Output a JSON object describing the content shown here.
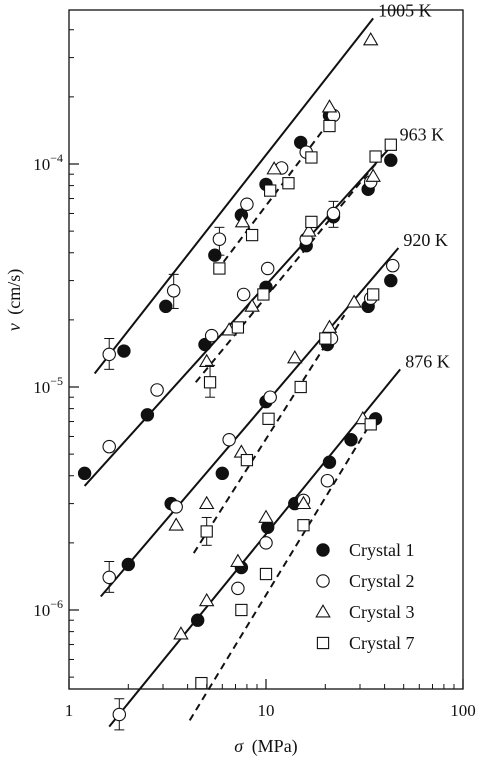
{
  "chart_data": {
    "type": "scatter",
    "xlabel_symbol": "σ",
    "xlabel_unit": "(MPa)",
    "ylabel_symbol": "v",
    "ylabel_unit": "(cm/s)",
    "x_scale": "log",
    "y_scale": "log",
    "xlim": [
      1,
      100
    ],
    "ylim": [
      2e-07,
      0.0007
    ],
    "x_ticks": [
      {
        "value": 1,
        "label": "1"
      },
      {
        "value": 10,
        "label": "10"
      },
      {
        "value": 100,
        "label": "100"
      }
    ],
    "y_ticks": [
      {
        "value": 1e-06,
        "mantissa": "10",
        "exponent": "−6"
      },
      {
        "value": 1e-05,
        "mantissa": "10",
        "exponent": "−5"
      },
      {
        "value": 0.0001,
        "mantissa": "10",
        "exponent": "−4"
      }
    ],
    "grid": false,
    "legend_position": "bottom-right",
    "legend": [
      {
        "name": "Crystal 1",
        "marker": "filled-circle"
      },
      {
        "name": "Crystal 2",
        "marker": "open-circle"
      },
      {
        "name": "Crystal 3",
        "marker": "open-triangle"
      },
      {
        "name": "Crystal 7",
        "marker": "open-square"
      }
    ],
    "temperature_groups": [
      {
        "label": "1005 K",
        "solid_line": [
          [
            1.35,
            1.15e-05
          ],
          [
            35,
            0.00045
          ]
        ],
        "dashed_line": [
          [
            5.6,
            3.3e-05
          ],
          [
            21,
            0.000155
          ]
        ],
        "points": [
          {
            "marker": "filled-circle",
            "x": 1.9,
            "y": 1.45e-05
          },
          {
            "marker": "filled-circle",
            "x": 3.1,
            "y": 2.3e-05
          },
          {
            "marker": "filled-circle",
            "x": 5.5,
            "y": 3.9e-05
          },
          {
            "marker": "filled-circle",
            "x": 7.5,
            "y": 5.9e-05
          },
          {
            "marker": "filled-circle",
            "x": 10,
            "y": 8.1e-05
          },
          {
            "marker": "filled-circle",
            "x": 15,
            "y": 0.000125
          },
          {
            "marker": "filled-circle",
            "x": 21,
            "y": 0.000165
          },
          {
            "marker": "open-circle",
            "x": 1.6,
            "y": 1.4e-05,
            "err": [
              1.2e-05,
              1.65e-05
            ]
          },
          {
            "marker": "open-circle",
            "x": 3.4,
            "y": 2.7e-05,
            "err": [
              2.25e-05,
              3.2e-05
            ]
          },
          {
            "marker": "open-circle",
            "x": 5.8,
            "y": 4.6e-05,
            "err": [
              3.9e-05,
              5.2e-05
            ]
          },
          {
            "marker": "open-circle",
            "x": 8,
            "y": 6.6e-05
          },
          {
            "marker": "open-circle",
            "x": 12,
            "y": 9.6e-05
          },
          {
            "marker": "open-circle",
            "x": 16,
            "y": 0.000113
          },
          {
            "marker": "open-circle",
            "x": 22,
            "y": 0.000165
          },
          {
            "marker": "open-triangle",
            "x": 7.6,
            "y": 5.5e-05
          },
          {
            "marker": "open-triangle",
            "x": 11,
            "y": 9.5e-05
          },
          {
            "marker": "open-triangle",
            "x": 21,
            "y": 0.00018
          },
          {
            "marker": "open-triangle",
            "x": 34,
            "y": 0.00036
          },
          {
            "marker": "open-square",
            "x": 5.8,
            "y": 3.4e-05
          },
          {
            "marker": "open-square",
            "x": 8.5,
            "y": 4.8e-05
          },
          {
            "marker": "open-square",
            "x": 10.5,
            "y": 7.6e-05
          },
          {
            "marker": "open-square",
            "x": 13,
            "y": 8.2e-05
          },
          {
            "marker": "open-square",
            "x": 17,
            "y": 0.000107
          },
          {
            "marker": "open-square",
            "x": 21,
            "y": 0.000148
          }
        ]
      },
      {
        "label": "963 K",
        "solid_line": [
          [
            1.2,
            3.6e-06
          ],
          [
            45,
            0.000125
          ]
        ],
        "dashed_line": [
          [
            4.4,
            1.05e-05
          ],
          [
            41,
            0.000115
          ]
        ],
        "points": [
          {
            "marker": "filled-circle",
            "x": 1.2,
            "y": 4.1e-06
          },
          {
            "marker": "filled-circle",
            "x": 2.5,
            "y": 7.5e-06
          },
          {
            "marker": "filled-circle",
            "x": 4.9,
            "y": 1.55e-05
          },
          {
            "marker": "filled-circle",
            "x": 10,
            "y": 2.8e-05
          },
          {
            "marker": "filled-circle",
            "x": 16,
            "y": 4.3e-05
          },
          {
            "marker": "filled-circle",
            "x": 22,
            "y": 5.8e-05
          },
          {
            "marker": "filled-circle",
            "x": 33,
            "y": 7.7e-05
          },
          {
            "marker": "filled-circle",
            "x": 43,
            "y": 0.000104
          },
          {
            "marker": "open-circle",
            "x": 1.6,
            "y": 5.4e-06
          },
          {
            "marker": "open-circle",
            "x": 2.8,
            "y": 9.7e-06
          },
          {
            "marker": "open-circle",
            "x": 5.3,
            "y": 1.7e-05
          },
          {
            "marker": "open-circle",
            "x": 7.7,
            "y": 2.6e-05
          },
          {
            "marker": "open-circle",
            "x": 10.2,
            "y": 3.4e-05
          },
          {
            "marker": "open-circle",
            "x": 16,
            "y": 4.6e-05
          },
          {
            "marker": "open-circle",
            "x": 22,
            "y": 6e-05,
            "err": [
              5.2e-05,
              6.8e-05
            ]
          },
          {
            "marker": "open-circle",
            "x": 34,
            "y": 8.3e-05
          },
          {
            "marker": "open-triangle",
            "x": 5,
            "y": 1.3e-05
          },
          {
            "marker": "open-triangle",
            "x": 6.5,
            "y": 1.8e-05
          },
          {
            "marker": "open-triangle",
            "x": 8.5,
            "y": 2.3e-05
          },
          {
            "marker": "open-triangle",
            "x": 16.5,
            "y": 5e-05
          },
          {
            "marker": "open-triangle",
            "x": 35,
            "y": 8.8e-05
          },
          {
            "marker": "open-square",
            "x": 5.2,
            "y": 1.05e-05,
            "err": [
              9e-06,
              1.25e-05
            ]
          },
          {
            "marker": "open-square",
            "x": 7.2,
            "y": 1.85e-05
          },
          {
            "marker": "open-square",
            "x": 9.7,
            "y": 2.6e-05
          },
          {
            "marker": "open-square",
            "x": 17,
            "y": 5.5e-05
          },
          {
            "marker": "open-square",
            "x": 36,
            "y": 0.000108
          },
          {
            "marker": "open-square",
            "x": 43,
            "y": 0.000122
          }
        ]
      },
      {
        "label": "920 K",
        "solid_line": [
          [
            1.45,
            1.15e-06
          ],
          [
            47,
            4.2e-05
          ]
        ],
        "dashed_line": [
          [
            4.3,
            1.8e-06
          ],
          [
            25,
            2.1e-05
          ]
        ],
        "points": [
          {
            "marker": "filled-circle",
            "x": 2,
            "y": 1.6e-06
          },
          {
            "marker": "filled-circle",
            "x": 3.3,
            "y": 3e-06
          },
          {
            "marker": "filled-circle",
            "x": 6,
            "y": 4.1e-06
          },
          {
            "marker": "filled-circle",
            "x": 10,
            "y": 8.6e-06
          },
          {
            "marker": "filled-circle",
            "x": 20.5,
            "y": 1.55e-05
          },
          {
            "marker": "filled-circle",
            "x": 33,
            "y": 2.3e-05
          },
          {
            "marker": "filled-circle",
            "x": 43,
            "y": 3e-05
          },
          {
            "marker": "open-circle",
            "x": 1.6,
            "y": 1.4e-06,
            "err": [
              1.2e-06,
              1.65e-06
            ]
          },
          {
            "marker": "open-circle",
            "x": 3.5,
            "y": 2.9e-06
          },
          {
            "marker": "open-circle",
            "x": 6.5,
            "y": 5.8e-06
          },
          {
            "marker": "open-circle",
            "x": 10.5,
            "y": 9e-06
          },
          {
            "marker": "open-circle",
            "x": 21.5,
            "y": 1.65e-05
          },
          {
            "marker": "open-circle",
            "x": 34,
            "y": 2.5e-05
          },
          {
            "marker": "open-circle",
            "x": 44,
            "y": 3.5e-05
          },
          {
            "marker": "open-triangle",
            "x": 3.5,
            "y": 2.4e-06
          },
          {
            "marker": "open-triangle",
            "x": 5,
            "y": 3e-06
          },
          {
            "marker": "open-triangle",
            "x": 7.5,
            "y": 5.1e-06
          },
          {
            "marker": "open-triangle",
            "x": 14,
            "y": 1.35e-05
          },
          {
            "marker": "open-triangle",
            "x": 21,
            "y": 1.85e-05
          },
          {
            "marker": "open-triangle",
            "x": 28,
            "y": 2.4e-05
          },
          {
            "marker": "open-square",
            "x": 5,
            "y": 2.25e-06,
            "err": [
              1.95e-06,
              2.6e-06
            ]
          },
          {
            "marker": "open-square",
            "x": 8,
            "y": 4.7e-06
          },
          {
            "marker": "open-square",
            "x": 10.3,
            "y": 7.2e-06
          },
          {
            "marker": "open-square",
            "x": 15,
            "y": 1e-05
          },
          {
            "marker": "open-square",
            "x": 20,
            "y": 1.65e-05
          },
          {
            "marker": "open-square",
            "x": 35,
            "y": 2.6e-05
          }
        ]
      },
      {
        "label": "876 K",
        "solid_line": [
          [
            1.6,
            3e-07
          ],
          [
            48,
            1.2e-05
          ]
        ],
        "dashed_line": [
          [
            4.1,
            3.2e-07
          ],
          [
            33,
            6.6e-06
          ]
        ],
        "points": [
          {
            "marker": "filled-circle",
            "x": 4.5,
            "y": 9e-07
          },
          {
            "marker": "filled-circle",
            "x": 7.5,
            "y": 1.55e-06
          },
          {
            "marker": "filled-circle",
            "x": 10.2,
            "y": 2.35e-06
          },
          {
            "marker": "filled-circle",
            "x": 14,
            "y": 3e-06
          },
          {
            "marker": "filled-circle",
            "x": 21,
            "y": 4.6e-06
          },
          {
            "marker": "filled-circle",
            "x": 27,
            "y": 5.8e-06
          },
          {
            "marker": "filled-circle",
            "x": 36,
            "y": 7.2e-06
          },
          {
            "marker": "open-circle",
            "x": 1.8,
            "y": 3.4e-07,
            "err": [
              2.9e-07,
              4e-07
            ]
          },
          {
            "marker": "open-circle",
            "x": 7.2,
            "y": 1.25e-06
          },
          {
            "marker": "open-circle",
            "x": 10,
            "y": 2e-06
          },
          {
            "marker": "open-circle",
            "x": 15.5,
            "y": 3.1e-06
          },
          {
            "marker": "open-circle",
            "x": 20.5,
            "y": 3.8e-06
          },
          {
            "marker": "open-triangle",
            "x": 3.7,
            "y": 7.8e-07
          },
          {
            "marker": "open-triangle",
            "x": 5,
            "y": 1.1e-06
          },
          {
            "marker": "open-triangle",
            "x": 7.2,
            "y": 1.65e-06
          },
          {
            "marker": "open-triangle",
            "x": 10,
            "y": 2.6e-06
          },
          {
            "marker": "open-triangle",
            "x": 15.5,
            "y": 3e-06
          },
          {
            "marker": "open-triangle",
            "x": 31,
            "y": 7.2e-06
          },
          {
            "marker": "open-square",
            "x": 4.7,
            "y": 4.7e-07
          },
          {
            "marker": "open-square",
            "x": 7.5,
            "y": 1e-06
          },
          {
            "marker": "open-square",
            "x": 10,
            "y": 1.45e-06
          },
          {
            "marker": "open-square",
            "x": 15.5,
            "y": 2.4e-06
          },
          {
            "marker": "open-square",
            "x": 34,
            "y": 6.8e-06
          }
        ]
      }
    ]
  }
}
